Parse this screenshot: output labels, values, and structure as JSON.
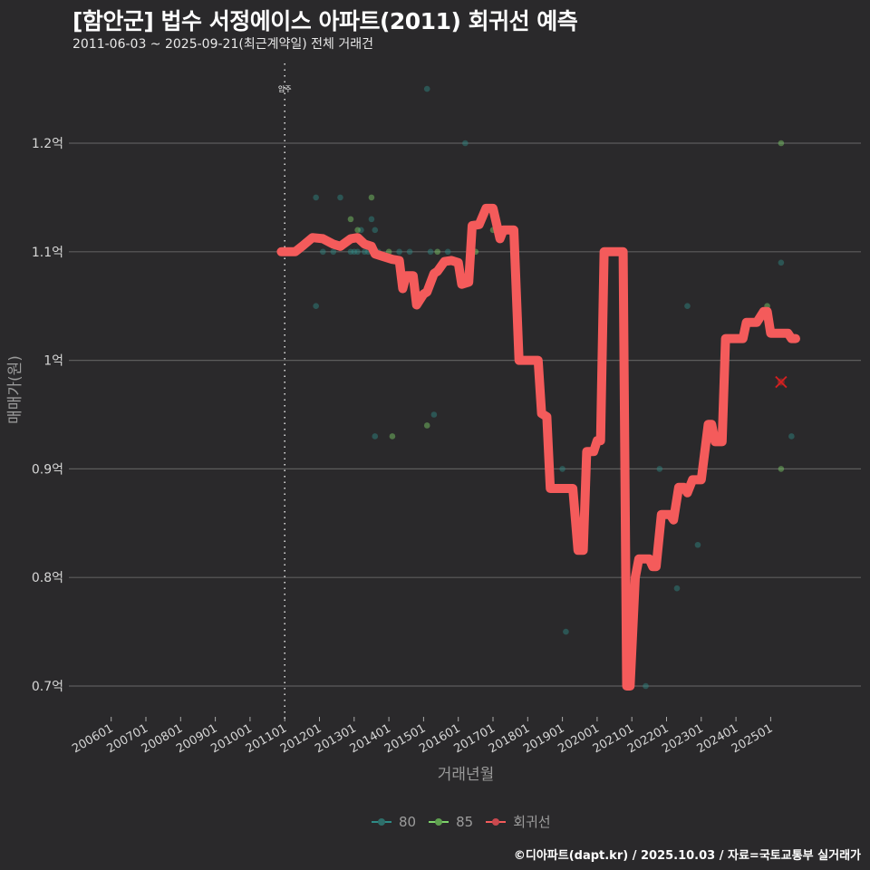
{
  "header": {
    "title": "[함안군] 법수 서정에이스 아파트(2011) 회귀선 예측",
    "subtitle": "2011-06-03 ~ 2025-09-21(최근계약일) 전체 거래건"
  },
  "legend": {
    "items": [
      {
        "label": "80",
        "color": "#2e8b87"
      },
      {
        "label": "85",
        "color": "#7ed36b"
      },
      {
        "label": "회귀선",
        "color": "#f45b5b"
      }
    ]
  },
  "caption": "©디아파트(dapt.kr) / 2025.10.03 / 자료=국토교통부 실거래가",
  "annotation": {
    "label": "입주",
    "x": "201106"
  },
  "chart_data": {
    "type": "line",
    "title": "[함안군] 법수 서정에이스 아파트(2011) 회귀선 예측",
    "subtitle": "2011-06-03 ~ 2025-09-21(최근계약일) 전체 거래건",
    "xlabel": "거래년월",
    "ylabel": "매매가(원)",
    "ylim": [
      0.68,
      1.27
    ],
    "y_unit": "억",
    "yticks": [
      "0.7억",
      "0.8억",
      "0.9억",
      "1억",
      "1.1억",
      "1.2억"
    ],
    "ytick_values": [
      0.7,
      0.8,
      0.9,
      1.0,
      1.1,
      1.2
    ],
    "xticks": [
      "200601",
      "200701",
      "200801",
      "200901",
      "201001",
      "201101",
      "201201",
      "201301",
      "201401",
      "201501",
      "201601",
      "201701",
      "201801",
      "201901",
      "202001",
      "202101",
      "202201",
      "202301",
      "202401",
      "202501"
    ],
    "grid": true,
    "legend_position": "bottom",
    "vertical_line": {
      "x": "201106",
      "label": "입주",
      "style": "dotted"
    },
    "series": [
      {
        "name": "회귀선",
        "type": "line",
        "color": "#f45b5b",
        "points": [
          [
            2010.9,
            1.1
          ],
          [
            2011.3,
            1.1
          ],
          [
            2011.5,
            1.105
          ],
          [
            2011.8,
            1.113
          ],
          [
            2012.1,
            1.112
          ],
          [
            2012.4,
            1.107
          ],
          [
            2012.6,
            1.105
          ],
          [
            2012.9,
            1.112
          ],
          [
            2013.1,
            1.113
          ],
          [
            2013.3,
            1.107
          ],
          [
            2013.5,
            1.105
          ],
          [
            2013.6,
            1.098
          ],
          [
            2013.9,
            1.095
          ],
          [
            2014.1,
            1.093
          ],
          [
            2014.3,
            1.092
          ],
          [
            2014.4,
            1.066
          ],
          [
            2014.5,
            1.078
          ],
          [
            2014.7,
            1.078
          ],
          [
            2014.8,
            1.051
          ],
          [
            2015.0,
            1.061
          ],
          [
            2015.1,
            1.063
          ],
          [
            2015.3,
            1.08
          ],
          [
            2015.4,
            1.082
          ],
          [
            2015.6,
            1.091
          ],
          [
            2015.8,
            1.092
          ],
          [
            2016.0,
            1.09
          ],
          [
            2016.1,
            1.07
          ],
          [
            2016.3,
            1.072
          ],
          [
            2016.4,
            1.124
          ],
          [
            2016.6,
            1.125
          ],
          [
            2016.8,
            1.14
          ],
          [
            2017.0,
            1.14
          ],
          [
            2017.2,
            1.112
          ],
          [
            2017.3,
            1.12
          ],
          [
            2017.6,
            1.12
          ],
          [
            2017.75,
            1.0
          ],
          [
            2018.1,
            1.0
          ],
          [
            2018.3,
            1.0
          ],
          [
            2018.4,
            0.951
          ],
          [
            2018.55,
            0.948
          ],
          [
            2018.65,
            0.882
          ],
          [
            2019.1,
            0.882
          ],
          [
            2019.3,
            0.882
          ],
          [
            2019.45,
            0.825
          ],
          [
            2019.6,
            0.825
          ],
          [
            2019.7,
            0.916
          ],
          [
            2019.9,
            0.916
          ],
          [
            2020.0,
            0.926
          ],
          [
            2020.1,
            0.926
          ],
          [
            2020.2,
            1.1
          ],
          [
            2020.6,
            1.1
          ],
          [
            2020.75,
            1.1
          ],
          [
            2020.85,
            0.7
          ],
          [
            2020.95,
            0.7
          ],
          [
            2021.1,
            0.8
          ],
          [
            2021.2,
            0.817
          ],
          [
            2021.5,
            0.817
          ],
          [
            2021.6,
            0.81
          ],
          [
            2021.7,
            0.81
          ],
          [
            2021.85,
            0.858
          ],
          [
            2022.1,
            0.858
          ],
          [
            2022.2,
            0.853
          ],
          [
            2022.35,
            0.883
          ],
          [
            2022.5,
            0.883
          ],
          [
            2022.6,
            0.878
          ],
          [
            2022.75,
            0.89
          ],
          [
            2023.0,
            0.89
          ],
          [
            2023.2,
            0.941
          ],
          [
            2023.3,
            0.941
          ],
          [
            2023.4,
            0.925
          ],
          [
            2023.6,
            0.925
          ],
          [
            2023.7,
            1.02
          ],
          [
            2024.0,
            1.02
          ],
          [
            2024.2,
            1.02
          ],
          [
            2024.3,
            1.035
          ],
          [
            2024.6,
            1.035
          ],
          [
            2024.8,
            1.045
          ],
          [
            2024.9,
            1.045
          ],
          [
            2025.0,
            1.025
          ],
          [
            2025.5,
            1.025
          ],
          [
            2025.6,
            1.02
          ],
          [
            2025.72,
            1.02
          ]
        ]
      },
      {
        "name": "80",
        "type": "scatter",
        "color": "#2e8b87",
        "points": [
          [
            2011.9,
            1.15
          ],
          [
            2012.1,
            1.1
          ],
          [
            2012.4,
            1.1
          ],
          [
            2012.6,
            1.15
          ],
          [
            2012.9,
            1.1
          ],
          [
            2013.1,
            1.1
          ],
          [
            2013.2,
            1.12
          ],
          [
            2013.5,
            1.13
          ],
          [
            2013.6,
            1.12
          ],
          [
            2013.7,
            1.1
          ],
          [
            2014.3,
            1.1
          ],
          [
            2014.6,
            1.1
          ],
          [
            2015.2,
            1.1
          ],
          [
            2015.7,
            1.1
          ],
          [
            2016.2,
            1.2
          ],
          [
            2015.1,
            1.25
          ],
          [
            2013.3,
            1.1
          ],
          [
            2013.4,
            1.1
          ],
          [
            2013.0,
            1.1
          ],
          [
            2011.9,
            1.05
          ],
          [
            2015.3,
            0.95
          ],
          [
            2013.6,
            0.93
          ],
          [
            2018.1,
            1.0
          ],
          [
            2019.0,
            0.9
          ],
          [
            2019.1,
            0.75
          ],
          [
            2021.4,
            0.7
          ],
          [
            2021.8,
            0.9
          ],
          [
            2022.3,
            0.79
          ],
          [
            2022.6,
            1.05
          ],
          [
            2022.9,
            0.83
          ],
          [
            2025.3,
            1.09
          ],
          [
            2025.6,
            0.93
          ]
        ]
      },
      {
        "name": "85",
        "type": "scatter",
        "color": "#7ed36b",
        "points": [
          [
            2012.9,
            1.13
          ],
          [
            2013.1,
            1.12
          ],
          [
            2013.5,
            1.15
          ],
          [
            2014.0,
            1.1
          ],
          [
            2014.1,
            0.93
          ],
          [
            2015.1,
            0.94
          ],
          [
            2015.4,
            1.1
          ],
          [
            2016.5,
            1.1
          ],
          [
            2017.0,
            1.12
          ],
          [
            2024.9,
            1.05
          ],
          [
            2025.3,
            1.2
          ],
          [
            2025.3,
            0.9
          ]
        ]
      },
      {
        "name": "predicted",
        "type": "marker",
        "marker": "x",
        "color": "#d42020",
        "points": [
          [
            2025.3,
            0.98
          ]
        ]
      }
    ]
  }
}
